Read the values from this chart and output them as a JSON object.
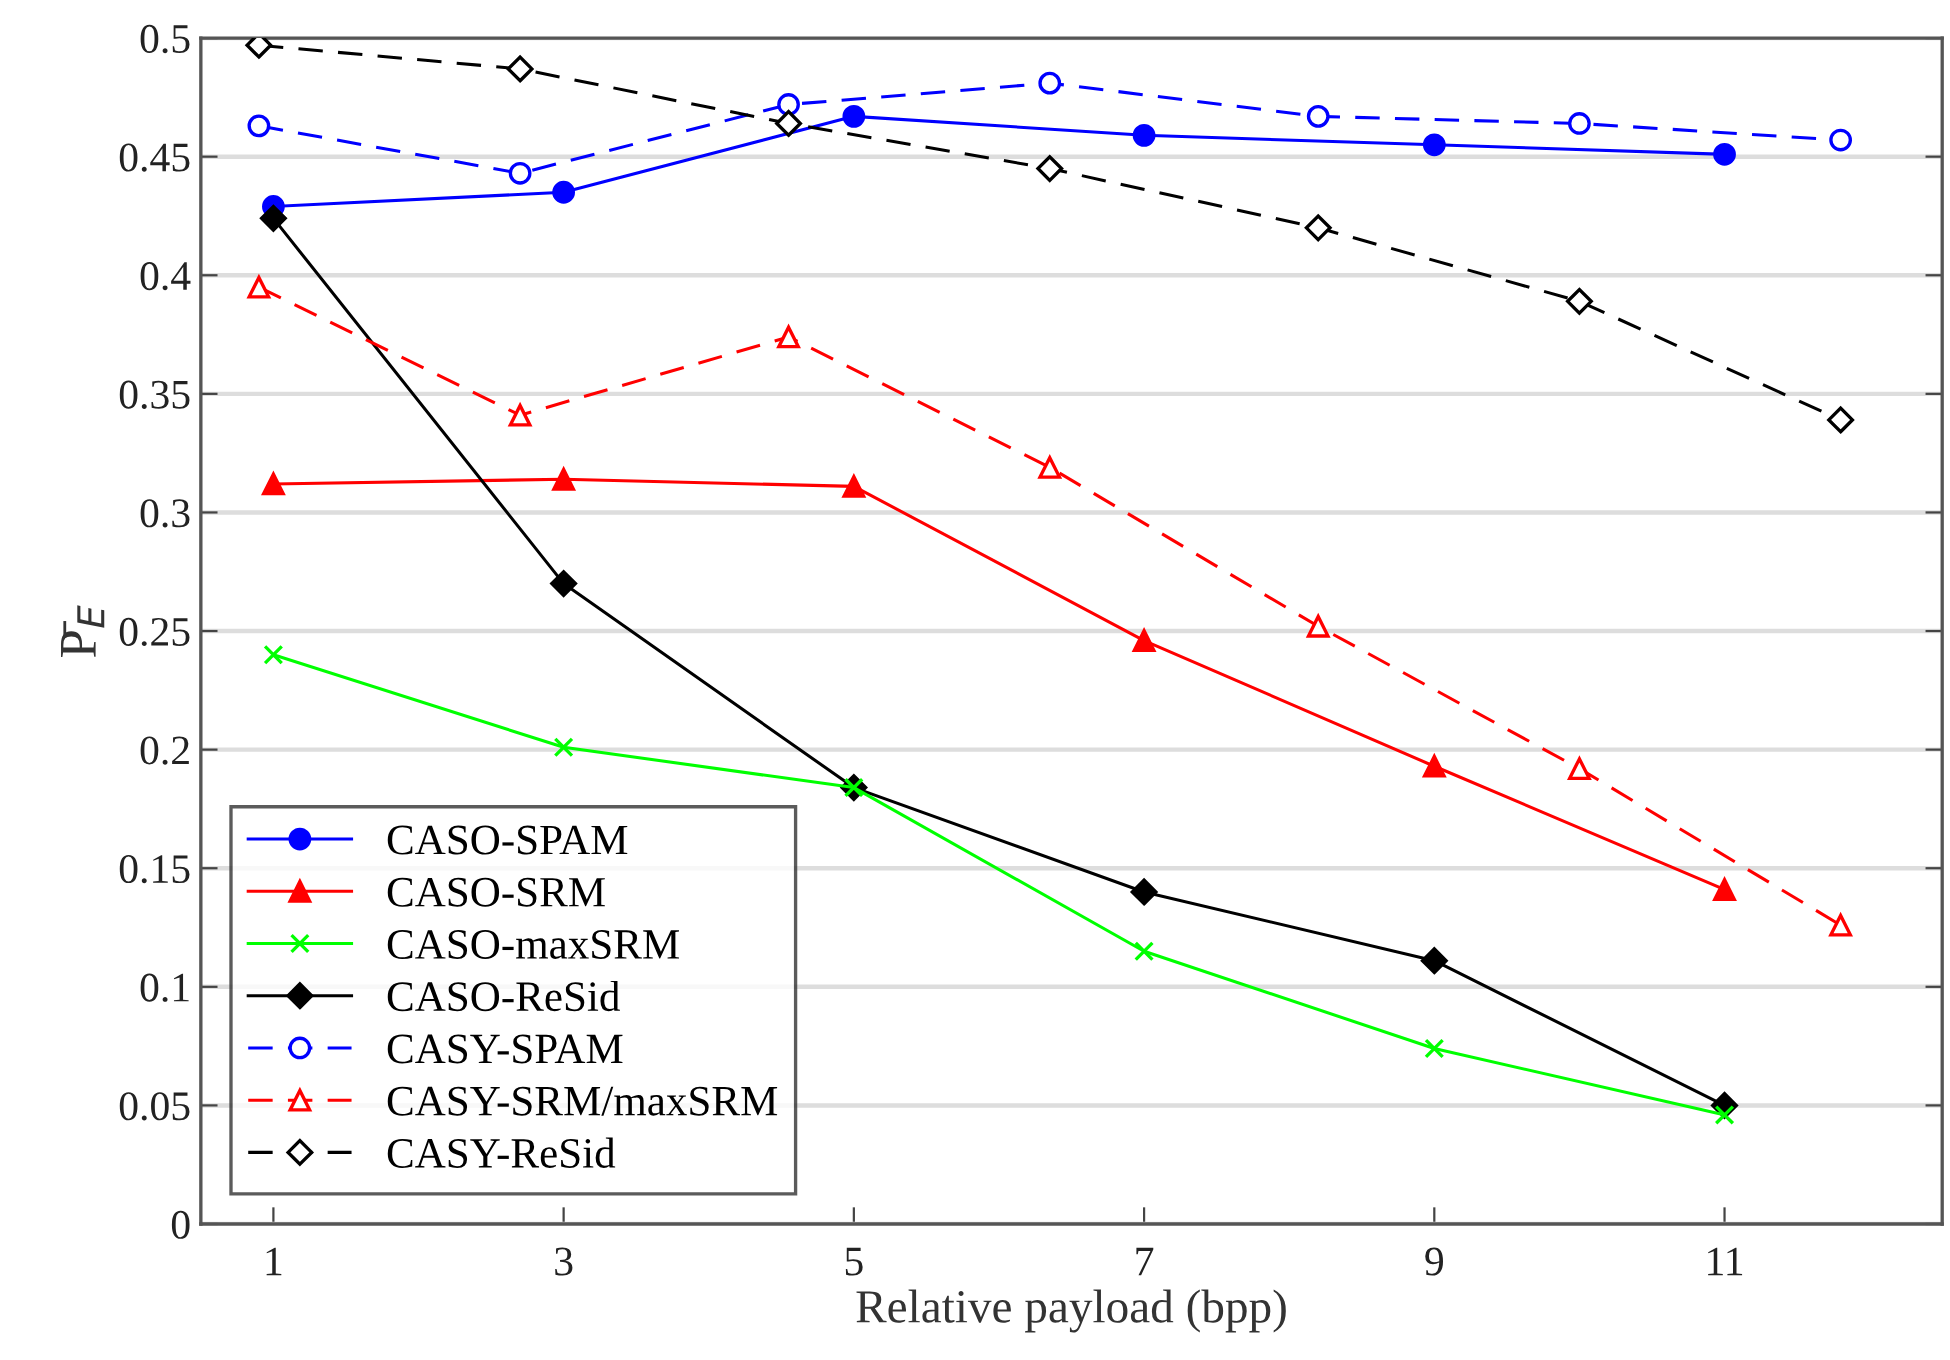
{
  "chart_data": {
    "type": "line",
    "xlabel": "Relative payload (bpp)",
    "ylabel": "P̄$_{E}$",
    "xlim": [
      0.5,
      12.5
    ],
    "xticks": [
      1,
      3,
      5,
      7,
      9,
      11
    ],
    "ylim": [
      0,
      0.5
    ],
    "yticks": [
      0,
      0.05,
      0.1,
      0.15,
      0.2,
      0.25,
      0.3,
      0.35,
      0.4,
      0.45,
      0.5
    ],
    "grid": "y",
    "legend": "bottom left",
    "series": [
      {
        "name": "CASO-SPAM",
        "color": "#0000ff",
        "marker": "circle",
        "line_style": "solid",
        "x": [
          1,
          3,
          5,
          7,
          9,
          11
        ],
        "values": [
          0.429,
          0.435,
          0.467,
          0.459,
          0.455,
          0.451
        ]
      },
      {
        "name": "CASO-SRM",
        "color": "#ff0000",
        "marker": "triangle",
        "line_style": "solid",
        "x": [
          1,
          3,
          5,
          7,
          9,
          11
        ],
        "values": [
          0.312,
          0.314,
          0.311,
          0.246,
          0.193,
          0.141
        ]
      },
      {
        "name": "CASO-maxSRM",
        "color": "#00ff00",
        "marker": "cross",
        "line_style": "solid",
        "x": [
          1,
          3,
          5,
          7,
          9,
          11
        ],
        "values": [
          0.24,
          0.201,
          0.184,
          0.115,
          0.074,
          0.046
        ]
      },
      {
        "name": "CASO-ReSid",
        "color": "#000000",
        "marker": "diamond",
        "line_style": "solid",
        "x": [
          1,
          3,
          5,
          7,
          9,
          11
        ],
        "values": [
          0.424,
          0.27,
          0.184,
          0.14,
          0.111,
          0.05
        ]
      },
      {
        "name": "CASY-SPAM",
        "color": "#0000ff",
        "marker": "circle",
        "line_style": "dashed",
        "x": [
          0.9,
          2.7,
          4.55,
          6.35,
          8.2,
          10,
          11.8
        ],
        "values": [
          0.463,
          0.443,
          0.472,
          0.481,
          0.467,
          0.464,
          0.457
        ]
      },
      {
        "name": "CASY-SRM/maxSRM",
        "color": "#ff0000",
        "marker": "triangle",
        "line_style": "dashed",
        "x": [
          0.9,
          2.7,
          4.55,
          6.35,
          8.2,
          10,
          11.8
        ],
        "values": [
          0.395,
          0.341,
          0.374,
          0.319,
          0.252,
          0.192,
          0.126
        ]
      },
      {
        "name": "CASY-ReSid",
        "color": "#000000",
        "marker": "diamond",
        "line_style": "dashed",
        "x": [
          0.9,
          2.7,
          4.55,
          6.35,
          8.2,
          10,
          11.8
        ],
        "values": [
          0.497,
          0.487,
          0.464,
          0.445,
          0.42,
          0.389,
          0.339
        ]
      }
    ]
  }
}
